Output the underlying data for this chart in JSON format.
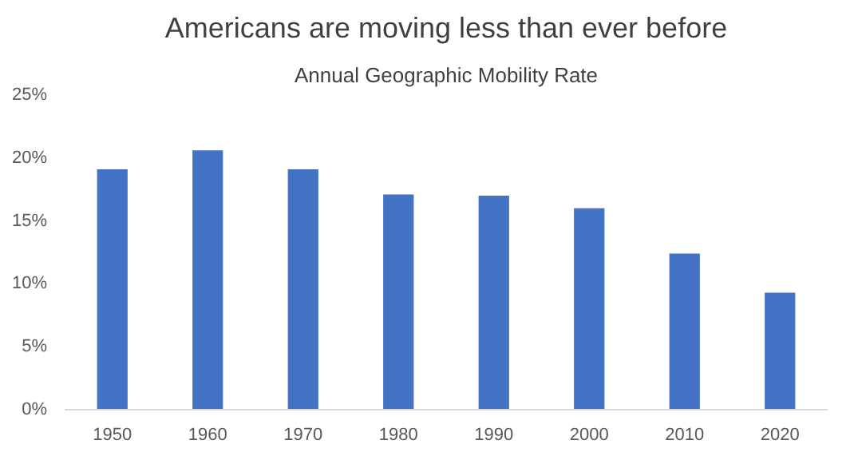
{
  "chart_data": {
    "type": "bar",
    "title": "Americans are moving less than ever before",
    "subtitle": "Annual Geographic Mobility Rate",
    "categories": [
      "1950",
      "1960",
      "1970",
      "1980",
      "1990",
      "2000",
      "2010",
      "2020"
    ],
    "values": [
      19.1,
      20.6,
      19.1,
      17.1,
      17.0,
      16.0,
      12.4,
      9.3
    ],
    "color": "#4472c4",
    "ylim": [
      0,
      25
    ],
    "yticks": [
      {
        "value": 0,
        "label": "0%"
      },
      {
        "value": 5,
        "label": "5%"
      },
      {
        "value": 10,
        "label": "10%"
      },
      {
        "value": 15,
        "label": "15%"
      },
      {
        "value": 20,
        "label": "20%"
      },
      {
        "value": 25,
        "label": "25%"
      }
    ],
    "grid": false
  }
}
